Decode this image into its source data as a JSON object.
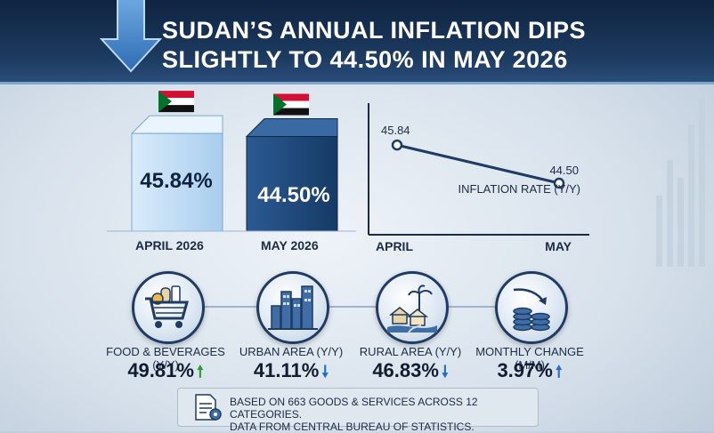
{
  "title": "SUDAN’S ANNUAL INFLATION DIPS\nSLIGHTLY TO 44.50% IN MAY 2026",
  "chart_data": [
    {
      "type": "bar",
      "categories": [
        "APRIL 2026",
        "MAY 2026"
      ],
      "values": [
        45.84,
        44.5
      ],
      "value_labels": [
        "45.84%",
        "44.50%"
      ],
      "colors": [
        "#a9cdee",
        "#1f4a7e"
      ]
    },
    {
      "type": "line",
      "x": [
        "APRIL",
        "MAY"
      ],
      "series": [
        {
          "name": "INFLATION RATE (Y/Y)",
          "values": [
            45.84,
            44.5
          ],
          "value_labels": [
            "45.84",
            "44.50"
          ]
        }
      ]
    }
  ],
  "metrics": [
    {
      "label": "FOOD & BEVERAGES (Y/Y)",
      "value": "49.81%",
      "trend": "up",
      "icon": "shopping-cart-icon"
    },
    {
      "label": "URBAN AREA (Y/Y)",
      "value": "41.11%",
      "trend": "down",
      "icon": "city-buildings-icon"
    },
    {
      "label": "RURAL AREA (Y/Y)",
      "value": "46.83%",
      "trend": "down",
      "icon": "rural-village-icon"
    },
    {
      "label": "MONTHLY CHANGE (M/M)",
      "value": "3.97%",
      "trend": "up",
      "icon": "coin-stacks-icon"
    }
  ],
  "footer": {
    "text": "BASED ON 663 GOODS & SERVICES ACROSS 12 CATEGORIES.\nDATA FROM CENTRAL BUREAU OF STATISTICS."
  },
  "colors": {
    "header": "#0f2440",
    "accent": "#1f4a7e",
    "up": "#2e9a3a",
    "down": "#1f6fc2"
  }
}
